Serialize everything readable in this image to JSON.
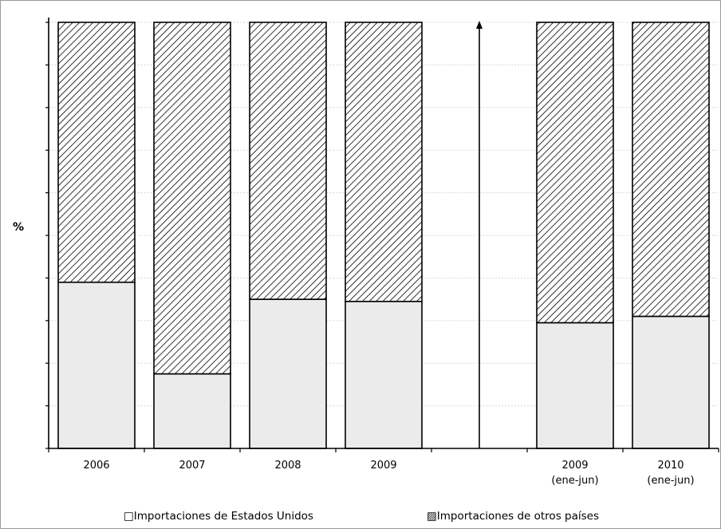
{
  "chart_data": {
    "type": "bar",
    "stacked": true,
    "percent_stacked": true,
    "ylabel": "%",
    "ylim": [
      0,
      100
    ],
    "grid": true,
    "legend_position": "bottom",
    "categories": [
      [
        "2006"
      ],
      [
        "2007"
      ],
      [
        "2008"
      ],
      [
        "2009"
      ],
      [],
      [
        "2009",
        "(ene-jun)"
      ],
      [
        "2010",
        "(ene-jun)"
      ]
    ],
    "series": [
      {
        "name": "Importaciones de Estados Unidos",
        "fill": "#ebebeb",
        "pattern": "solid",
        "values": [
          39,
          17.5,
          35,
          34.5,
          null,
          29.5,
          31
        ]
      },
      {
        "name": "Importaciones de otros países",
        "fill": "#ffffff",
        "pattern": "diagonal-hatch",
        "values": [
          61,
          82.5,
          65,
          65.5,
          null,
          70.5,
          69
        ]
      }
    ]
  },
  "legend": {
    "item1_symbol": "□",
    "item1_label": "Importaciones de Estados Unidos",
    "item2_symbol": "▨",
    "item2_label": "Importaciones de otros países"
  }
}
